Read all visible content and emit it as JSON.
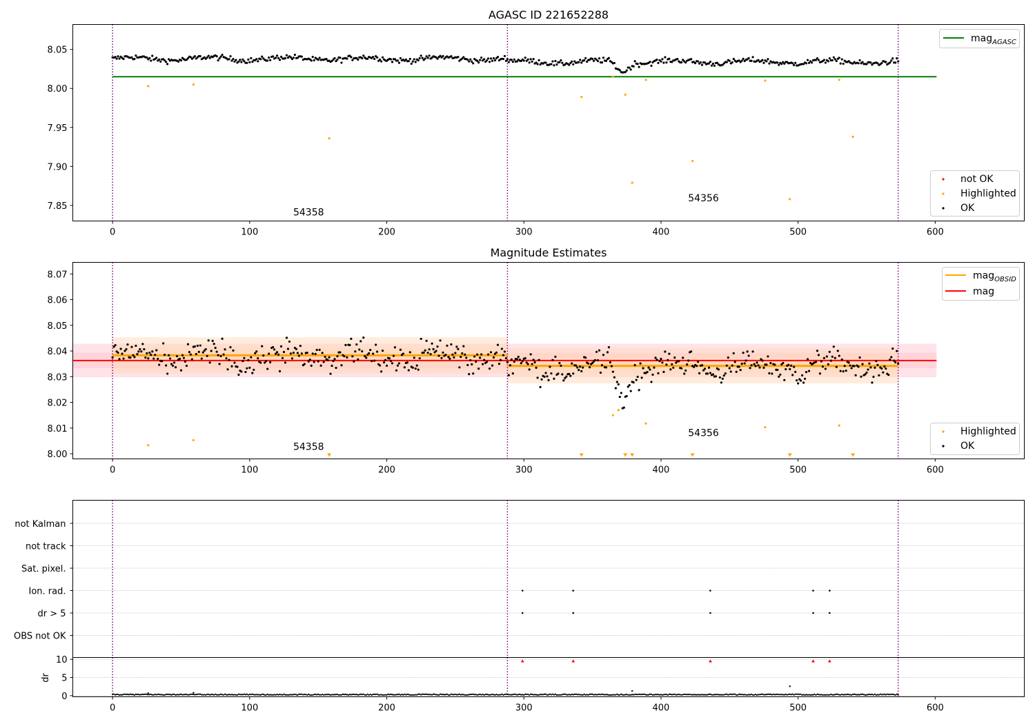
{
  "figure": {
    "background": "#ffffff",
    "colors": {
      "ok": "#000000",
      "highlighted": "#ffa500",
      "not_ok": "#ff0000",
      "mag_agasc": "#008000",
      "mag": "#ff0000",
      "mag_obsid": "#ffa500",
      "obsid_boundary": "#800080",
      "mag_band": "#ffc0cb",
      "obsid_band": "#ffdab9"
    }
  },
  "chart_data": [
    {
      "type": "scatter",
      "title": "AGASC ID 221652288",
      "xlim": [
        -29,
        665
      ],
      "ylim": [
        7.83,
        8.082
      ],
      "xticks": [
        0,
        100,
        200,
        300,
        400,
        500,
        600
      ],
      "yticks": [
        7.85,
        7.9,
        7.95,
        8.0,
        8.05
      ],
      "ytick_labels": [
        "7.85",
        "7.90",
        "7.95",
        "8.00",
        "8.05"
      ],
      "obsid_boundaries": [
        0,
        288,
        573
      ],
      "obsid_labels": [
        {
          "x": 143,
          "y": 7.837,
          "text": "54358"
        },
        {
          "x": 431,
          "y": 7.855,
          "text": "54356"
        }
      ],
      "mag_agasc": {
        "value": 8.015,
        "x": [
          0,
          601
        ]
      },
      "legend_lines": [
        {
          "label_main": "mag",
          "label_sub": "AGASC",
          "color": "#008000"
        }
      ],
      "legend_points": [
        {
          "label": "not OK",
          "color": "#ff0000"
        },
        {
          "label": "Highlighted",
          "color": "#ffa500"
        },
        {
          "label": "OK",
          "color": "#000000"
        }
      ],
      "ok_points": {
        "x_start": 0,
        "x_end": 573,
        "count": 574,
        "segments": [
          {
            "x": [
              0,
              288
            ],
            "mean": 8.038,
            "amp": 0.0045
          },
          {
            "x": [
              288,
              573
            ],
            "mean": 8.034,
            "amp": 0.0045
          }
        ],
        "dip": {
          "center": 372,
          "width": 9,
          "depth": 0.013
        }
      },
      "highlighted_points": [
        {
          "x": 26,
          "y": 8.003
        },
        {
          "x": 59,
          "y": 8.005
        },
        {
          "x": 158,
          "y": 7.936
        },
        {
          "x": 342,
          "y": 7.989
        },
        {
          "x": 365,
          "y": 8.015
        },
        {
          "x": 374,
          "y": 7.992
        },
        {
          "x": 379,
          "y": 7.879
        },
        {
          "x": 389,
          "y": 8.011
        },
        {
          "x": 423,
          "y": 7.907
        },
        {
          "x": 476,
          "y": 8.01
        },
        {
          "x": 494,
          "y": 7.858
        },
        {
          "x": 530,
          "y": 8.011
        },
        {
          "x": 540,
          "y": 7.938
        }
      ]
    },
    {
      "type": "scatter",
      "title": "Magnitude Estimates",
      "xlim": [
        -29,
        665
      ],
      "ylim": [
        7.998,
        8.0745
      ],
      "xticks": [
        0,
        100,
        200,
        300,
        400,
        500,
        600
      ],
      "yticks": [
        8.0,
        8.01,
        8.02,
        8.03,
        8.04,
        8.05,
        8.06,
        8.07
      ],
      "ytick_labels": [
        "8.00",
        "8.01",
        "8.02",
        "8.03",
        "8.04",
        "8.05",
        "8.06",
        "8.07"
      ],
      "obsid_boundaries": [
        0,
        288,
        573
      ],
      "obsid_labels": [
        {
          "x": 143,
          "y": 8.0015,
          "text": "54358"
        },
        {
          "x": 431,
          "y": 8.0068,
          "text": "54356"
        }
      ],
      "mag": {
        "value": 8.0363,
        "x": [
          -29,
          601
        ],
        "band": [
          8.0298,
          8.0428
        ],
        "band_inner": [
          8.0333,
          8.0393
        ]
      },
      "mag_obsid": [
        {
          "x": [
            0,
            288
          ],
          "value": 8.0383,
          "band": [
            8.0312,
            8.0453
          ],
          "band_inner": [
            8.0353,
            8.0413
          ]
        },
        {
          "x": [
            288,
            573
          ],
          "value": 8.0342,
          "band": [
            8.0274,
            8.041
          ],
          "band_inner": [
            8.0314,
            8.0372
          ]
        }
      ],
      "legend_lines": [
        {
          "label_main": "mag",
          "label_sub": "OBSID",
          "color": "#ffa500"
        },
        {
          "label_main": "mag",
          "label_sub": "",
          "color": "#ff0000"
        }
      ],
      "legend_points": [
        {
          "label": "Highlighted",
          "color": "#ffa500"
        },
        {
          "label": "OK",
          "color": "#000000"
        }
      ],
      "highlighted_points": [
        {
          "x": 26,
          "y": 8.0033
        },
        {
          "x": 59,
          "y": 8.0053
        },
        {
          "x": 365,
          "y": 8.015
        },
        {
          "x": 369,
          "y": 8.017
        },
        {
          "x": 389,
          "y": 8.0118
        },
        {
          "x": 476,
          "y": 8.0103
        },
        {
          "x": 530,
          "y": 8.011
        }
      ],
      "clipped_markers": [
        158,
        342,
        374,
        379,
        423,
        494,
        540
      ]
    },
    {
      "type": "scatter",
      "title": "",
      "xlim": [
        -29,
        665
      ],
      "categories": [
        "not Kalman",
        "not track",
        "Sat. pixel.",
        "Ion. rad.",
        "dr > 5",
        "OBS not OK"
      ],
      "flags": [
        {
          "category": "Ion. rad.",
          "x": [
            299,
            336,
            436,
            511,
            523
          ]
        },
        {
          "category": "dr > 5",
          "x": [
            299,
            336,
            436,
            511,
            523
          ]
        }
      ],
      "obsid_boundaries": [
        0,
        288,
        573
      ]
    },
    {
      "type": "scatter",
      "title": "",
      "xlim": [
        -29,
        665
      ],
      "ylim": [
        -0.3,
        10.5
      ],
      "ylabel": "dr",
      "xticks": [
        0,
        100,
        200,
        300,
        400,
        500,
        600
      ],
      "yticks": [
        0,
        5,
        10
      ],
      "ytick_labels": [
        "0",
        "5",
        "10"
      ],
      "baseline_value": 0.3,
      "outliers": [
        {
          "x": 26,
          "y": 0.7
        },
        {
          "x": 59,
          "y": 0.8
        },
        {
          "x": 379,
          "y": 1.3
        },
        {
          "x": 494,
          "y": 2.6
        }
      ],
      "clipped_markers": [
        299,
        336,
        436,
        511,
        523
      ],
      "obsid_boundaries": [
        0,
        288,
        573
      ]
    }
  ]
}
